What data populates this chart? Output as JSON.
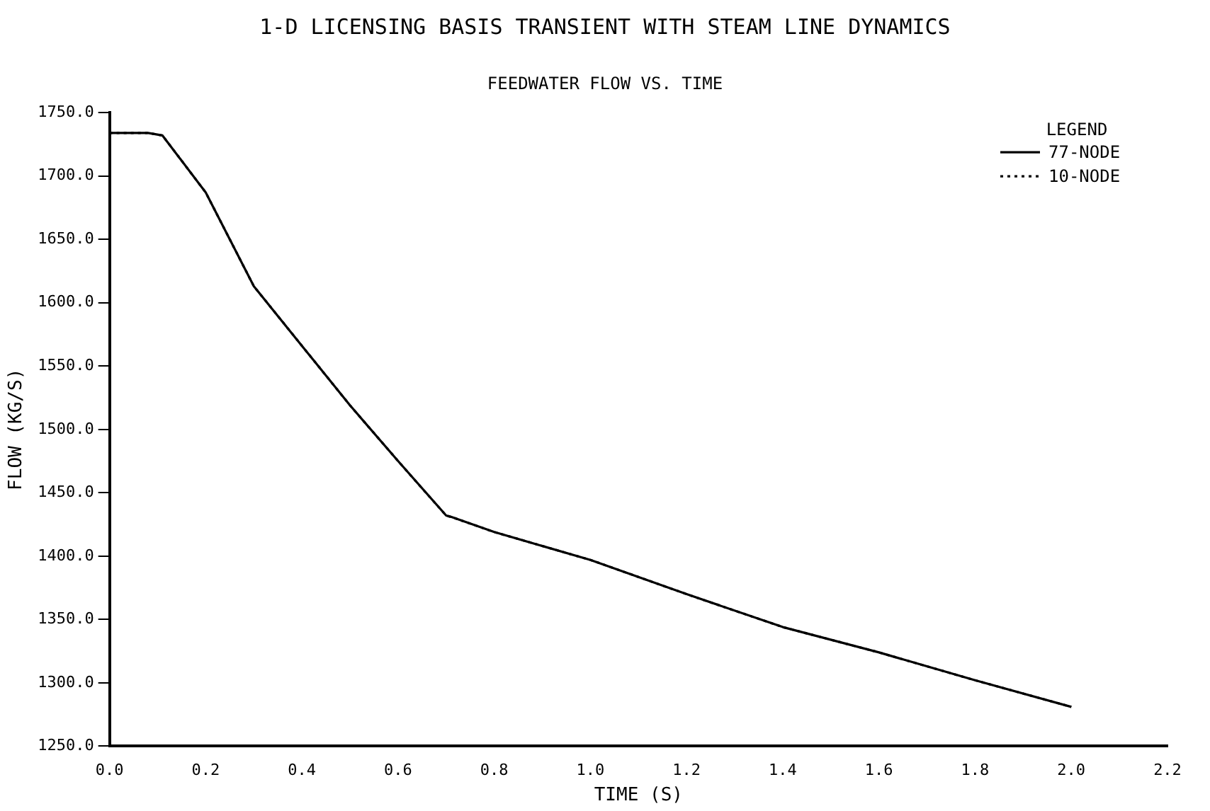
{
  "chart_data": {
    "type": "line",
    "title": "1-D LICENSING BASIS TRANSIENT WITH STEAM LINE DYNAMICS",
    "subtitle": "FEEDWATER FLOW VS. TIME",
    "xlabel": "TIME (S)",
    "ylabel": "FLOW (KG/S)",
    "legend_title": "LEGEND",
    "legend": "top right",
    "grid": false,
    "x": [
      0,
      0.08,
      0.11,
      0.2,
      0.3,
      0.4,
      0.5,
      0.6,
      0.7,
      0.71,
      0.8,
      1.0,
      1.2,
      1.4,
      1.6,
      1.8,
      2.0
    ],
    "series": [
      {
        "name": "77-NODE",
        "color": "#000000",
        "line_style": "solid",
        "values": [
          1734,
          1734,
          1732,
          1687,
          1613,
          1566,
          1519,
          1475,
          1432,
          1431,
          1419,
          1397,
          1370,
          1344,
          1324,
          1302,
          1281
        ]
      },
      {
        "name": "10-NODE",
        "color": "#000000",
        "line_style": "dotted",
        "values": [
          1734,
          1734,
          1732,
          1687,
          1613,
          1566,
          1519,
          1475,
          1432,
          1431,
          1419,
          1397,
          1370,
          1344,
          1324,
          1302,
          1281
        ]
      }
    ],
    "xlim": [
      0,
      2.2
    ],
    "xticks": [
      {
        "value": 0,
        "label": "0.0"
      },
      {
        "value": 0.2,
        "label": "0.2"
      },
      {
        "value": 0.4,
        "label": "0.4"
      },
      {
        "value": 0.6,
        "label": "0.6"
      },
      {
        "value": 0.8,
        "label": "0.8"
      },
      {
        "value": 1.0,
        "label": "1.0"
      },
      {
        "value": 1.2,
        "label": "1.2"
      },
      {
        "value": 1.4,
        "label": "1.4"
      },
      {
        "value": 1.6,
        "label": "1.6"
      },
      {
        "value": 1.8,
        "label": "1.8"
      },
      {
        "value": 2.0,
        "label": "2.0"
      },
      {
        "value": 2.2,
        "label": "2.2"
      }
    ],
    "ylim": [
      1250,
      1750
    ],
    "yticks": [
      {
        "value": 1250,
        "label": "1250.0"
      },
      {
        "value": 1300,
        "label": "1300.0"
      },
      {
        "value": 1350,
        "label": "1350.0"
      },
      {
        "value": 1400,
        "label": "1400.0"
      },
      {
        "value": 1450,
        "label": "1450.0"
      },
      {
        "value": 1500,
        "label": "1500.0"
      },
      {
        "value": 1550,
        "label": "1550.0"
      },
      {
        "value": 1600,
        "label": "1600.0"
      },
      {
        "value": 1650,
        "label": "1650.0"
      },
      {
        "value": 1700,
        "label": "1700.0"
      },
      {
        "value": 1750,
        "label": "1750.0"
      }
    ]
  }
}
